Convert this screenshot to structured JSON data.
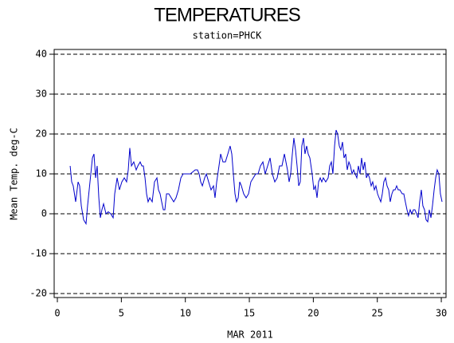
{
  "chart_data": {
    "type": "line",
    "title": "TEMPERATURES",
    "subtitle": "station=PHCK",
    "x_label": "MAR 2011",
    "y_label": "Mean Temp. deg-C",
    "color": "#0000cc",
    "grid": true,
    "xlim": [
      -0.25,
      30.37
    ],
    "xticks": [
      0,
      5,
      10,
      15,
      20,
      25,
      30
    ],
    "ylim": [
      -21,
      41.2
    ],
    "yticks": [
      -20,
      -10,
      0,
      10,
      20,
      30,
      40
    ],
    "x": [
      1.0,
      1.12,
      1.24,
      1.43,
      1.62,
      1.74,
      1.87,
      2.05,
      2.24,
      2.36,
      2.55,
      2.74,
      2.86,
      2.99,
      3.11,
      3.24,
      3.36,
      3.48,
      3.61,
      3.8,
      3.98,
      4.17,
      4.36,
      4.48,
      4.67,
      4.85,
      5.04,
      5.23,
      5.41,
      5.54,
      5.66,
      5.79,
      5.97,
      6.16,
      6.29,
      6.47,
      6.6,
      6.72,
      6.85,
      6.97,
      7.09,
      7.22,
      7.41,
      7.59,
      7.78,
      7.9,
      8.03,
      8.15,
      8.28,
      8.4,
      8.53,
      8.71,
      8.9,
      9.09,
      9.27,
      9.46,
      9.65,
      9.83,
      10.02,
      10.21,
      10.39,
      10.58,
      10.77,
      10.95,
      11.08,
      11.2,
      11.33,
      11.51,
      11.64,
      11.82,
      12.01,
      12.2,
      12.32,
      12.45,
      12.63,
      12.76,
      12.94,
      13.13,
      13.32,
      13.5,
      13.63,
      13.75,
      13.88,
      14.0,
      14.13,
      14.25,
      14.38,
      14.56,
      14.75,
      14.94,
      15.12,
      15.31,
      15.5,
      15.68,
      15.87,
      16.06,
      16.24,
      16.43,
      16.62,
      16.8,
      16.99,
      17.18,
      17.36,
      17.55,
      17.74,
      17.86,
      17.98,
      18.11,
      18.23,
      18.36,
      18.48,
      18.61,
      18.73,
      18.86,
      18.98,
      19.1,
      19.23,
      19.35,
      19.48,
      19.6,
      19.73,
      19.91,
      20.04,
      20.16,
      20.29,
      20.41,
      20.54,
      20.66,
      20.78,
      20.97,
      21.16,
      21.28,
      21.41,
      21.53,
      21.66,
      21.78,
      21.9,
      22.03,
      22.15,
      22.28,
      22.4,
      22.53,
      22.65,
      22.78,
      22.9,
      23.03,
      23.15,
      23.27,
      23.4,
      23.52,
      23.65,
      23.77,
      23.9,
      24.02,
      24.15,
      24.27,
      24.39,
      24.52,
      24.64,
      24.77,
      24.89,
      25.02,
      25.14,
      25.27,
      25.39,
      25.51,
      25.64,
      25.76,
      25.89,
      26.01,
      26.14,
      26.26,
      26.39,
      26.51,
      26.63,
      26.76,
      26.95,
      27.07,
      27.19,
      27.32,
      27.44,
      27.57,
      27.69,
      27.82,
      27.94,
      28.07,
      28.19,
      28.31,
      28.44,
      28.56,
      28.69,
      28.81,
      28.94,
      29.06,
      29.19,
      29.31,
      29.44,
      29.56,
      29.68,
      29.81,
      29.93,
      30.06
    ],
    "values": [
      12,
      8,
      7,
      3,
      8,
      7,
      2,
      -1.5,
      -2.5,
      2,
      8,
      14,
      15,
      9,
      12,
      4,
      -1,
      1,
      2.5,
      0,
      0.5,
      0,
      -1,
      5,
      9,
      6,
      8,
      9,
      8,
      11,
      16.5,
      12,
      13,
      11,
      12,
      13,
      12,
      12,
      9,
      5,
      3,
      4,
      3,
      8,
      9,
      6,
      5,
      3,
      1,
      1,
      5,
      5,
      4,
      3,
      4,
      6,
      9,
      10,
      10,
      10,
      10,
      10.5,
      11,
      11,
      10,
      8,
      7,
      9,
      10,
      8,
      6,
      7,
      4,
      8,
      12,
      15,
      13,
      13,
      15,
      17,
      15,
      10,
      5,
      3,
      4,
      8,
      7,
      5,
      4,
      5,
      8,
      9,
      10,
      10,
      12,
      13,
      10,
      12,
      14,
      10,
      8,
      9,
      12,
      12,
      15,
      13,
      11,
      8,
      10,
      15,
      19,
      16,
      12,
      7,
      8,
      17,
      19,
      15,
      17,
      15,
      14,
      10,
      6,
      7,
      4,
      8,
      9,
      8,
      9,
      8,
      9,
      12,
      13,
      10,
      17,
      21,
      20,
      17,
      16,
      18,
      14,
      15,
      11,
      13,
      12,
      10,
      11,
      10,
      9,
      12,
      10,
      14,
      11,
      13,
      9,
      10,
      9,
      7,
      8,
      6,
      7,
      5,
      4,
      3,
      5,
      8,
      9,
      7,
      6,
      3,
      5,
      6,
      6,
      7,
      6,
      6,
      5,
      5,
      3,
      1,
      -0.5,
      1,
      0,
      1,
      1,
      0,
      -1,
      3,
      6,
      2,
      1,
      -1.5,
      -2,
      1,
      -1,
      2,
      6,
      9,
      11,
      10,
      5,
      3
    ]
  }
}
